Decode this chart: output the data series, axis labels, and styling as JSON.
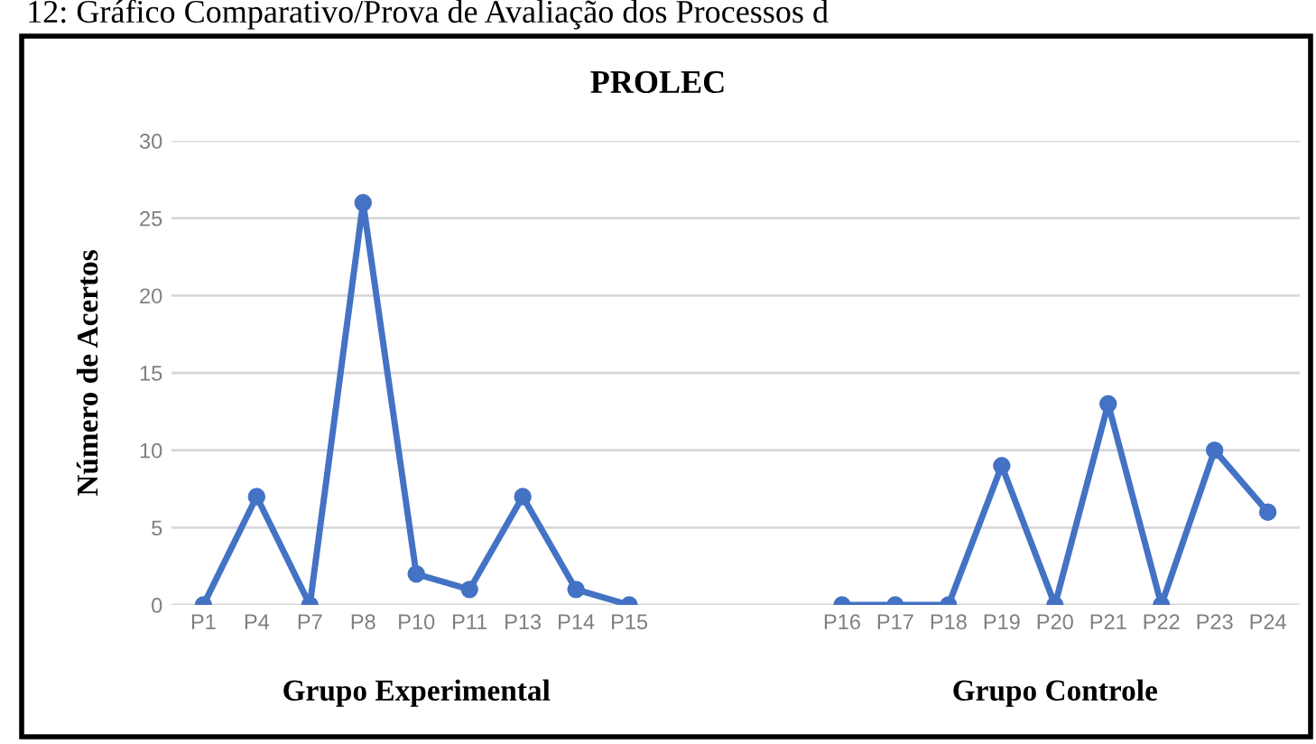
{
  "chart_data": {
    "type": "line",
    "title": "PROLEC",
    "ylabel": "Número de Acertos",
    "categories": [
      "P1",
      "P4",
      "P7",
      "P8",
      "P10",
      "P11",
      "P13",
      "P14",
      "P15",
      null,
      null,
      null,
      "P16",
      "P17",
      "P18",
      "P19",
      "P20",
      "P21",
      "P22",
      "P23",
      "P24"
    ],
    "series": [
      {
        "color": "#4472c4",
        "values": [
          0,
          7,
          0,
          26,
          2,
          1,
          7,
          1,
          0,
          null,
          null,
          null,
          0,
          0,
          0,
          9,
          0,
          13,
          0,
          10,
          6
        ]
      }
    ],
    "ylim": [
      0,
      30
    ],
    "yticks": [
      0,
      5,
      10,
      15,
      20,
      25,
      30
    ],
    "grid": "y",
    "legend": false,
    "marker": "circle",
    "line_style": "solid",
    "annotations": [
      "12: Gráfico Comparativo/Prova de Avaliação dos Processos d",
      "Grupo Experimental",
      "Grupo Controle"
    ]
  }
}
